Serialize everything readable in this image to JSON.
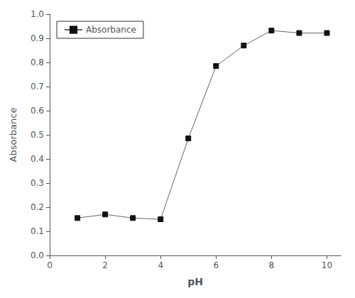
{
  "chart_data": {
    "type": "line",
    "x": [
      1,
      2,
      3,
      4,
      5,
      6,
      7,
      8,
      9,
      10
    ],
    "series": [
      {
        "name": "Absorbance",
        "color": "#666666",
        "marker": "square",
        "colors": [
          "#111111",
          "#111111",
          "#111111",
          "#111111",
          "#111111",
          "#111111",
          "#111111",
          "#111111",
          "#111111",
          "#111111"
        ],
        "values": [
          0.155,
          0.17,
          0.155,
          0.15,
          0.485,
          0.785,
          0.87,
          0.932,
          0.922,
          0.922
        ]
      }
    ],
    "xlabel": "pH",
    "ylabel": "Absorbance",
    "xlim": [
      0,
      10.5
    ],
    "ylim": [
      0.0,
      1.0
    ],
    "xticks": [
      0,
      2,
      4,
      6,
      8,
      10
    ],
    "yticks": [
      {
        "value": 0,
        "label": "0.0"
      },
      0.1,
      0.2,
      0.3,
      0.4,
      0.5,
      0.6,
      0.7,
      0.8,
      0.9,
      {
        "value": 1,
        "label": "1.0"
      }
    ],
    "grid": false,
    "legend": "upper left"
  }
}
